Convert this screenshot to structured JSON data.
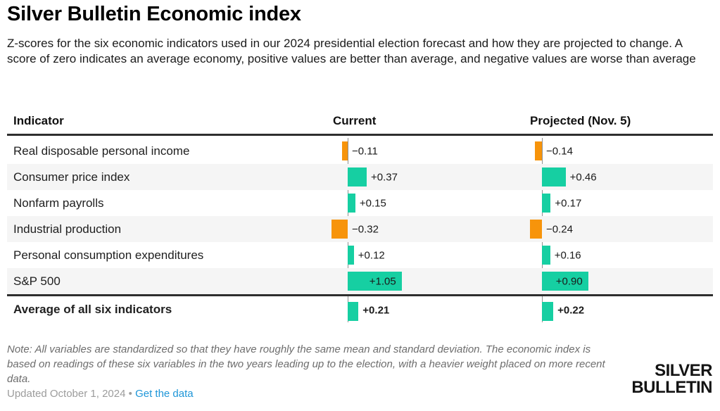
{
  "page": {
    "title": "Silver Bulletin Economic index",
    "subtitle": "Z-scores for the six economic indicators used in our 2024 presidential election forecast and how they are projected to change. A score of zero indicates an average economy, positive values are better than average, and negative values are worse than average"
  },
  "table": {
    "columns": {
      "indicator": "Indicator",
      "current": "Current",
      "projected": "Projected (Nov. 5)"
    }
  },
  "chart_data": {
    "type": "bar",
    "orientation": "horizontal",
    "title": "Silver Bulletin Economic index",
    "categories": [
      "Real disposable personal income",
      "Consumer price index",
      "Nonfarm payrolls",
      "Industrial production",
      "Personal consumption expenditures",
      "S&P 500",
      "Average of all six indicators"
    ],
    "series": [
      {
        "name": "Current",
        "values": [
          -0.11,
          0.37,
          0.15,
          -0.32,
          0.12,
          1.05,
          0.21
        ],
        "labels": [
          "−0.11",
          "+0.37",
          "+0.15",
          "−0.32",
          "+0.12",
          "+1.05",
          "+0.21"
        ]
      },
      {
        "name": "Projected (Nov. 5)",
        "values": [
          -0.14,
          0.46,
          0.17,
          -0.24,
          0.16,
          0.9,
          0.22
        ],
        "labels": [
          "−0.14",
          "+0.46",
          "+0.17",
          "−0.24",
          "+0.16",
          "+0.90",
          "+0.22"
        ]
      }
    ],
    "baseline": 0,
    "positive_color": "#16CFA2",
    "negative_color": "#F7940B",
    "summary_row_index": 6,
    "inside_label_threshold": 0.8,
    "striped_row_indexes": [
      1,
      3,
      5
    ]
  },
  "footer": {
    "note": "Note: All variables are standardized so that they have roughly the same mean and standard deviation. The economic index is based on readings of these six variables in the two years leading up to the election, with a heavier weight placed on more recent data.",
    "updated": "Updated October 1, 2024",
    "separator": "•",
    "link": "Get the data",
    "link_color": "#1e96d8"
  },
  "logo": {
    "line1": "SILVER",
    "line2": "BULLETIN"
  }
}
